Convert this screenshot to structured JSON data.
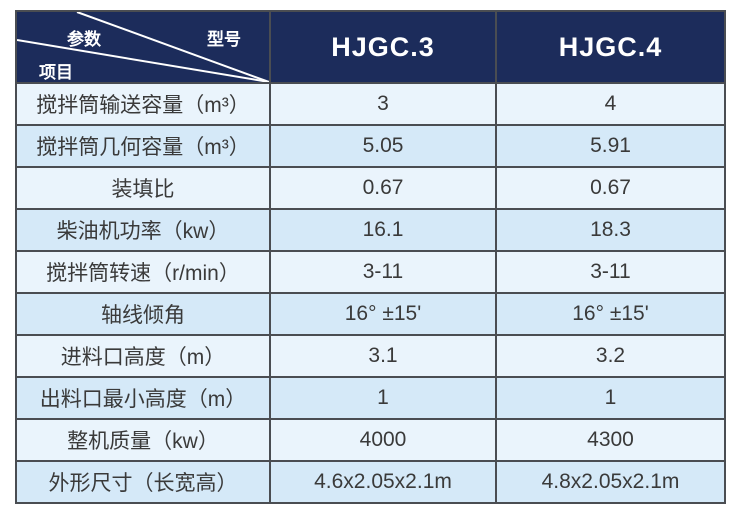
{
  "header": {
    "corner_top_left": "参数",
    "corner_top_right": "型号",
    "corner_bottom": "项目",
    "models": [
      "HJGC.3",
      "HJGC.4"
    ]
  },
  "rows": [
    {
      "label": "搅拌筒输送容量（m³）",
      "values": [
        "3",
        "4"
      ]
    },
    {
      "label": "搅拌筒几何容量（m³）",
      "values": [
        "5.05",
        "5.91"
      ]
    },
    {
      "label": "装填比",
      "values": [
        "0.67",
        "0.67"
      ]
    },
    {
      "label": "柴油机功率（kw）",
      "values": [
        "16.1",
        "18.3"
      ]
    },
    {
      "label": "搅拌筒转速（r/min）",
      "values": [
        "3-11",
        "3-11"
      ]
    },
    {
      "label": "轴线倾角",
      "values": [
        "16°  ±15'",
        "16°  ±15'"
      ]
    },
    {
      "label": "进料口高度（m）",
      "values": [
        "3.1",
        "3.2"
      ]
    },
    {
      "label": "出料口最小高度（m）",
      "values": [
        "1",
        "1"
      ]
    },
    {
      "label": "整机质量（kw）",
      "values": [
        "4000",
        "4300"
      ]
    },
    {
      "label": "外形尺寸（长宽高）",
      "values": [
        "4.6x2.05x2.1m",
        "4.8x2.05x2.1m"
      ]
    }
  ]
}
